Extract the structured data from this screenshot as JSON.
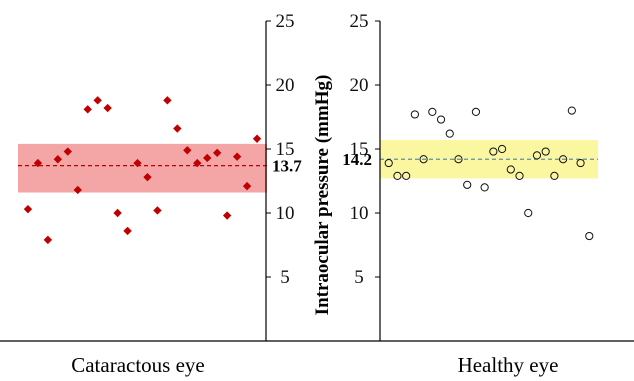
{
  "chart_data": {
    "type": "scatter",
    "ylabel": "Intraocular  pressure (mmHg)",
    "ylim": [
      0,
      25
    ],
    "yticks": [
      5,
      10,
      15,
      20,
      25
    ],
    "panels": [
      {
        "name": "Cataractous eye",
        "mean": 13.7,
        "mean_label": "13.7",
        "band": [
          11.6,
          15.4
        ],
        "band_color": "#f4a6a6",
        "line_color": "#c00000",
        "marker": "filled-diamond",
        "marker_color": "#c00000",
        "values": [
          10.3,
          13.9,
          7.9,
          14.2,
          14.8,
          11.8,
          18.1,
          18.8,
          18.2,
          10.0,
          8.6,
          13.9,
          12.8,
          10.2,
          18.8,
          16.6,
          14.9,
          13.9,
          14.3,
          14.7,
          9.8,
          14.4,
          12.1,
          15.8
        ]
      },
      {
        "name": "Healthy eye",
        "mean": 14.2,
        "mean_label": "14.2",
        "band": [
          12.7,
          15.7
        ],
        "band_color": "#fbf7a0",
        "line_color": "#5f8f9f",
        "marker": "open-circle",
        "marker_color": "#111111",
        "values": [
          13.9,
          12.9,
          12.9,
          17.7,
          14.2,
          17.9,
          17.3,
          16.2,
          14.2,
          12.2,
          17.9,
          12.0,
          14.8,
          15.0,
          13.4,
          12.9,
          10.0,
          14.5,
          14.8,
          12.9,
          14.2,
          18.0,
          13.9,
          8.2
        ]
      }
    ]
  }
}
